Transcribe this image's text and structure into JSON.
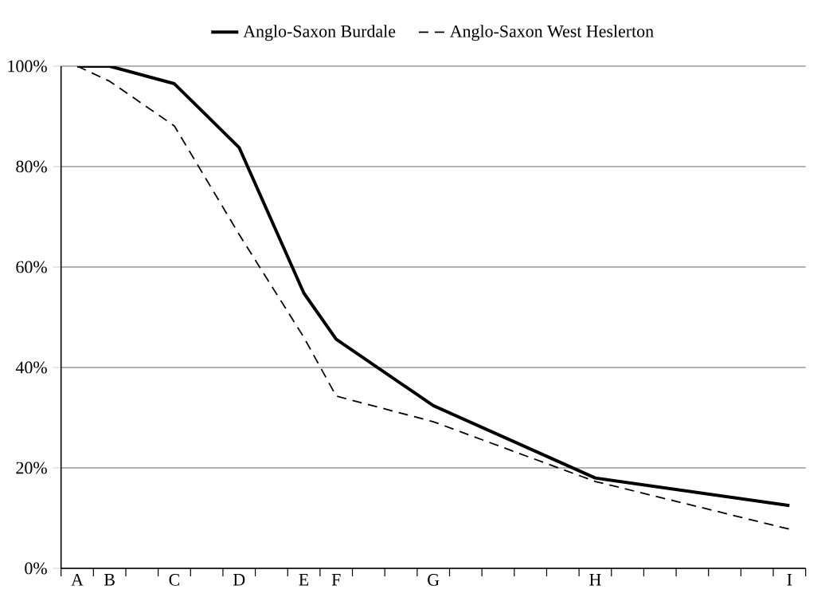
{
  "chart_data": {
    "type": "line",
    "categories": [
      "A",
      "B",
      null,
      "C",
      null,
      "D",
      null,
      "E",
      "F",
      null,
      null,
      "G",
      null,
      null,
      null,
      null,
      "H",
      null,
      null,
      null,
      null,
      null,
      "I"
    ],
    "series": [
      {
        "name": "Anglo-Saxon Burdale",
        "color": "#000000",
        "line_style": "solid",
        "values": [
          100,
          100,
          null,
          96.5,
          null,
          83.8,
          null,
          54.8,
          45.6,
          null,
          null,
          32.4,
          null,
          null,
          null,
          null,
          18,
          null,
          null,
          null,
          null,
          null,
          12.5
        ]
      },
      {
        "name": "Anglo-Saxon West Heslerton",
        "color": "#000000",
        "line_style": "dashed",
        "values": [
          100,
          97,
          null,
          88.1,
          null,
          66.5,
          null,
          46,
          34.3,
          null,
          null,
          29.2,
          null,
          null,
          null,
          null,
          17.3,
          null,
          null,
          null,
          null,
          null,
          7.8
        ]
      }
    ],
    "ylim": [
      0,
      100
    ],
    "yticks": [
      {
        "value": 0,
        "label": "0%"
      },
      {
        "value": 20,
        "label": "20%"
      },
      {
        "value": 40,
        "label": "40%"
      },
      {
        "value": 60,
        "label": "60%"
      },
      {
        "value": 80,
        "label": "80%"
      },
      {
        "value": 100,
        "label": "100%"
      }
    ],
    "grid": "y",
    "legend": "top",
    "marker": "none"
  }
}
